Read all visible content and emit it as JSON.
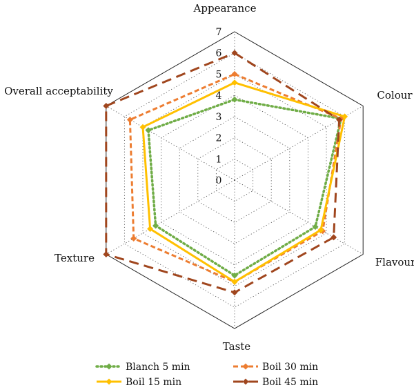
{
  "chart_data": {
    "type": "radar",
    "axes": [
      "Appearance",
      "Colour",
      "Flavour",
      "Taste",
      "Texture",
      "Overall acceptability"
    ],
    "tick_labels": [
      "0",
      "1",
      "2",
      "3",
      "4",
      "5",
      "6",
      "7"
    ],
    "rlim": [
      0,
      7
    ],
    "grid": true,
    "legend_placement": "bottom",
    "series": [
      {
        "name": "Blanch 5 min",
        "values": [
          3.8,
          5.8,
          4.4,
          4.5,
          4.3,
          4.7
        ],
        "color": "#70ad47",
        "style": "dotted",
        "marker": "diamond"
      },
      {
        "name": "Boil 30 min",
        "values": [
          5.0,
          5.8,
          4.8,
          4.8,
          5.5,
          5.7
        ],
        "color": "#ed7d31",
        "style": "dashed",
        "marker": "diamond"
      },
      {
        "name": "Boil 15 min",
        "values": [
          4.6,
          6.0,
          4.7,
          4.8,
          4.6,
          5.0
        ],
        "color": "#ffc000",
        "style": "solid",
        "marker": "diamond"
      },
      {
        "name": "Boil 45 min",
        "values": [
          6.0,
          5.7,
          5.4,
          5.3,
          7.0,
          7.0
        ],
        "color": "#a0461e",
        "style": "longdash",
        "marker": "diamond"
      }
    ]
  }
}
